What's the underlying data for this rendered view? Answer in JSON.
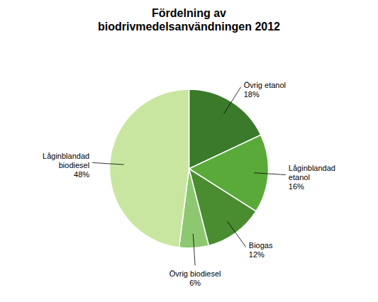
{
  "chart_data": {
    "type": "pie",
    "title": "Fördelning av\nbiodrivmedelsanvändningen 2012",
    "categories": [
      "Övrig etanol\n18%",
      "Låginblandad\netanol\n16%",
      "Biogas\n12%",
      "Övrig biodiesel\n6%",
      "Låginblandad\nbiodiesel\n48%"
    ],
    "values": [
      18,
      16,
      12,
      6,
      48
    ],
    "colors": [
      "#3a7a2a",
      "#5aaa3a",
      "#4a8c30",
      "#8dc870",
      "#c8e6a0"
    ]
  }
}
